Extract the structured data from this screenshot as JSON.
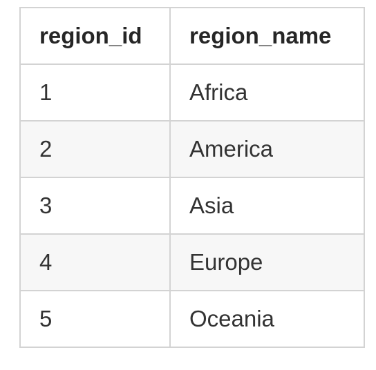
{
  "table": {
    "columns": [
      "region_id",
      "region_name"
    ],
    "rows": [
      {
        "region_id": "1",
        "region_name": "Africa"
      },
      {
        "region_id": "2",
        "region_name": "America"
      },
      {
        "region_id": "3",
        "region_name": "Asia"
      },
      {
        "region_id": "4",
        "region_name": "Europe"
      },
      {
        "region_id": "5",
        "region_name": "Oceania"
      }
    ]
  }
}
